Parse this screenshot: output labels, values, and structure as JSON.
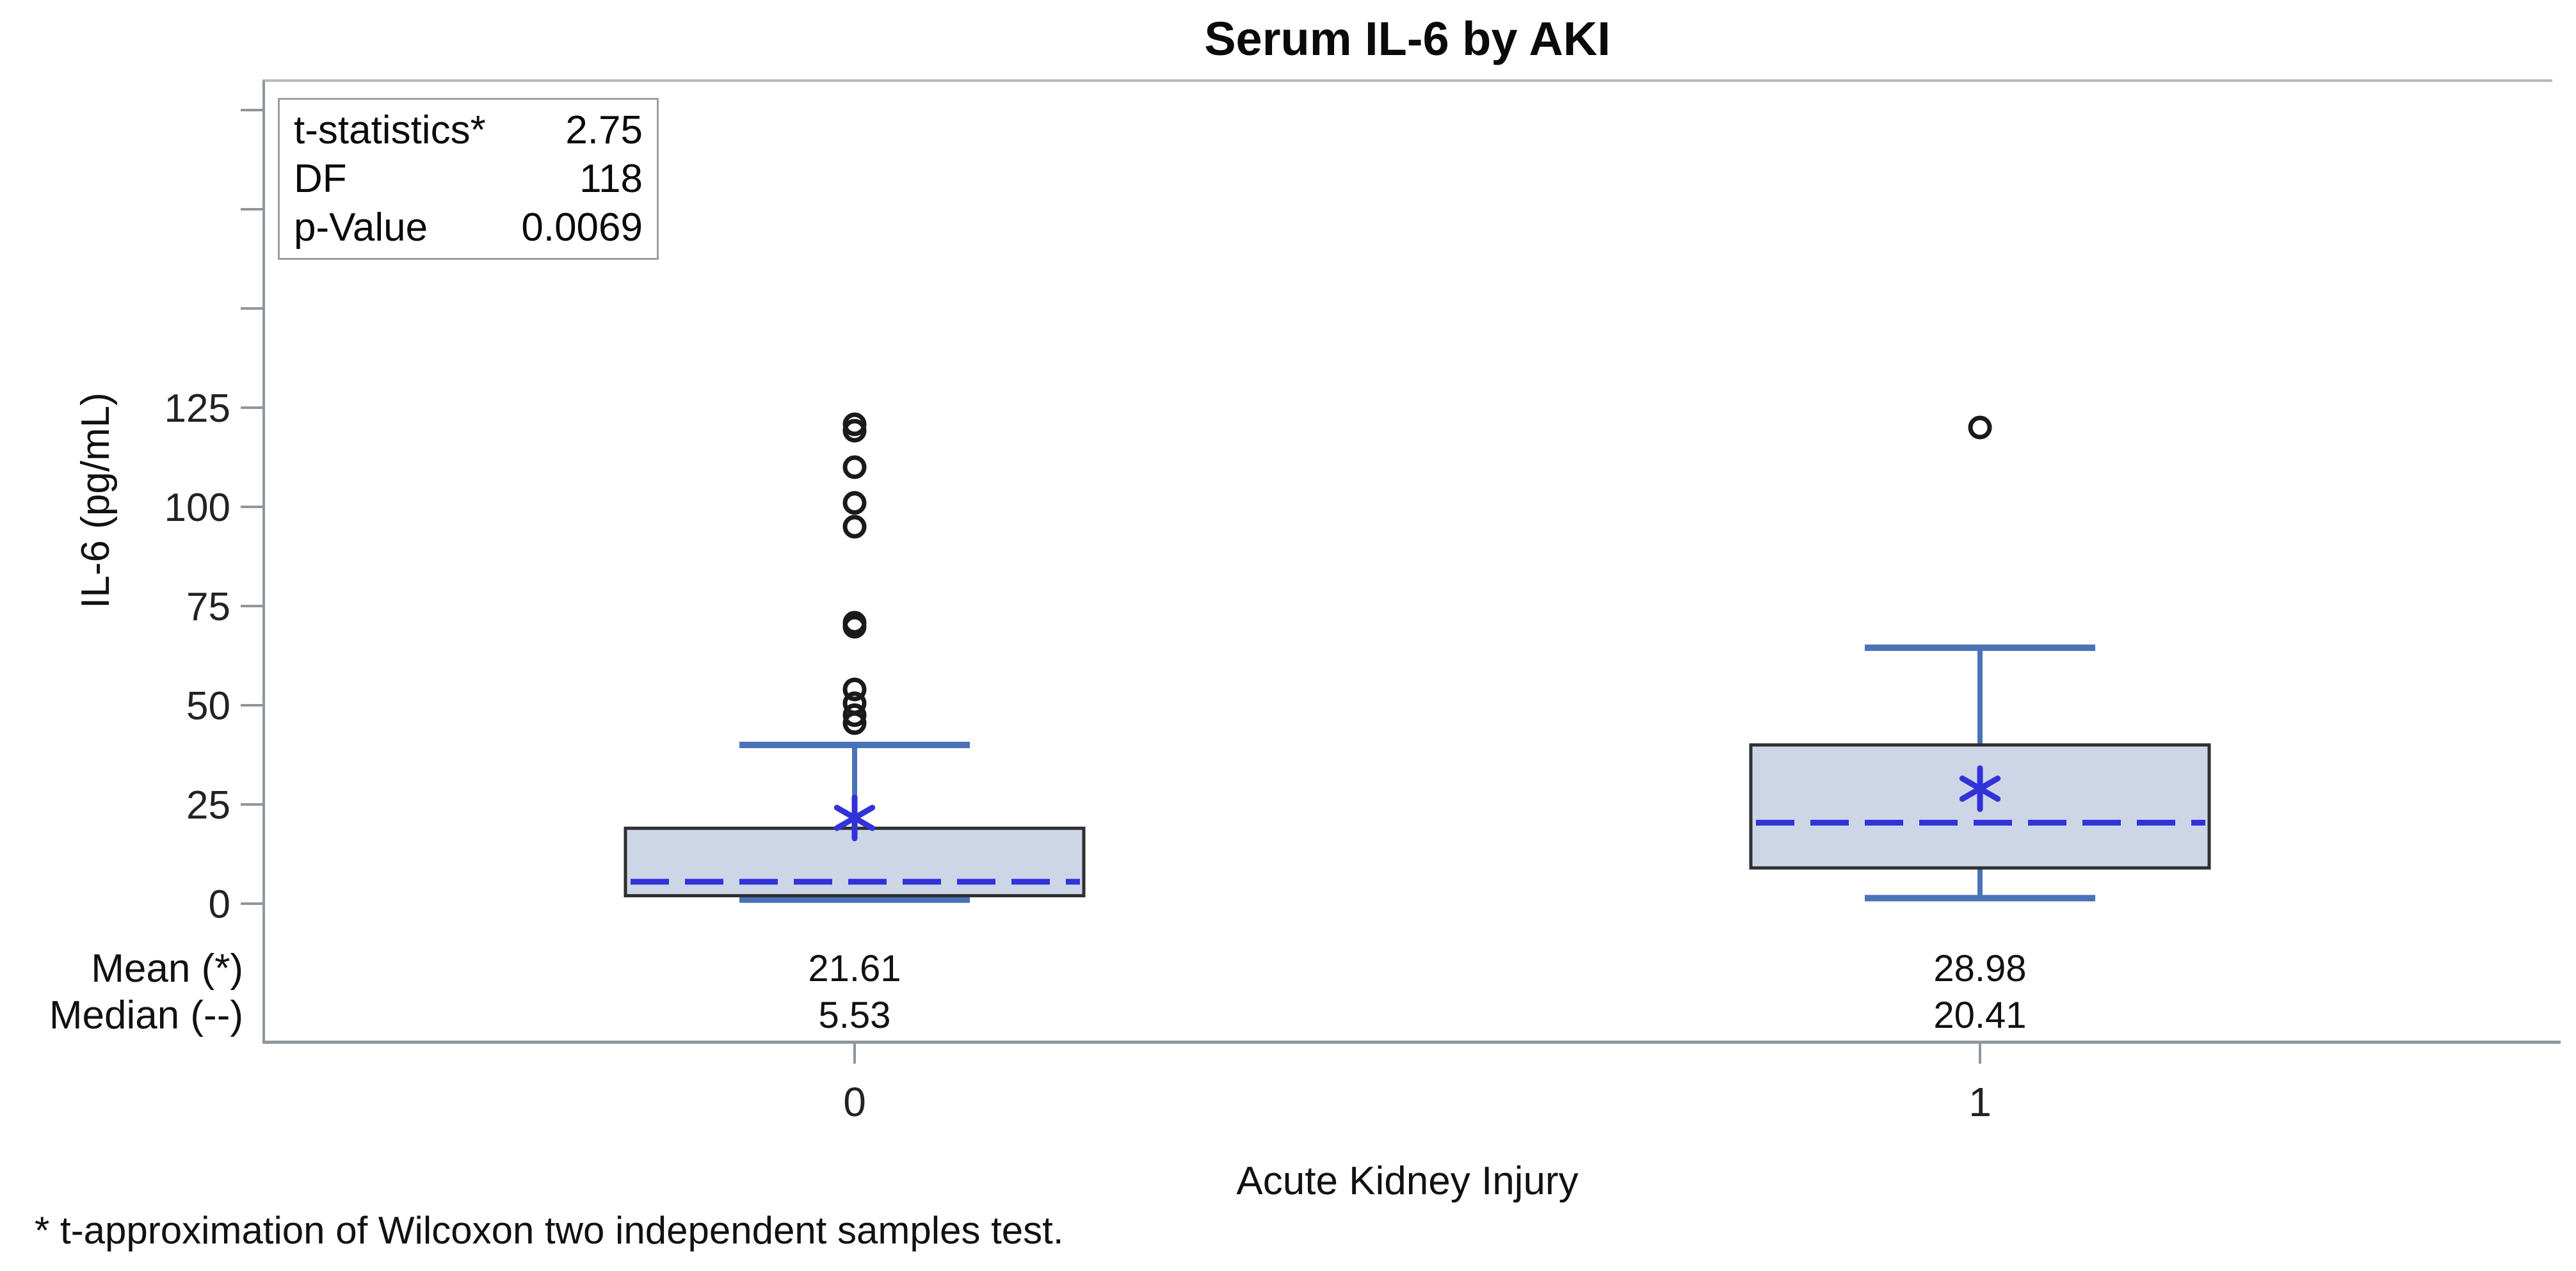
{
  "chart_data": {
    "type": "box",
    "title": "Serum IL-6 by AKI",
    "ylabel": "IL-6 (pg/mL)",
    "xlabel": "Acute Kidney Injury",
    "ylim": [
      0,
      207
    ],
    "yticks": [
      0,
      25,
      50,
      75,
      100,
      125,
      150,
      175,
      200
    ],
    "ytick_label_max": 125,
    "grid": false,
    "categories": [
      "0",
      "1"
    ],
    "series": [
      {
        "category": "0",
        "mean": 21.61,
        "median": 5.53,
        "q1": 2,
        "q3": 19,
        "whisker_low": 1,
        "whisker_high": 40,
        "outliers": [
          120.8,
          119.2,
          110,
          101,
          95,
          70.8,
          69.8,
          54,
          50.5,
          47.5,
          45.5
        ],
        "mean_label": "21.61",
        "median_label": "5.53"
      },
      {
        "category": "1",
        "mean": 28.98,
        "median": 20.41,
        "q1": 9,
        "q3": 40,
        "whisker_low": 1.4,
        "whisker_high": 64.5,
        "outliers": [
          120
        ],
        "mean_label": "28.98",
        "median_label": "20.41"
      }
    ],
    "row_labels": {
      "mean": "Mean (*)",
      "median": "Median (--)"
    },
    "inset": [
      {
        "label": "t-statistics*",
        "value": "2.75"
      },
      {
        "label": "DF",
        "value": "118"
      },
      {
        "label": "p-Value",
        "value": "0.0069"
      }
    ],
    "footnote": "* t-approximation of Wilcoxon two independent samples test.",
    "colors": {
      "box_fill": "#cdd6e7",
      "box_border": "#2f2f2f",
      "whisker": "#4a72b8",
      "median_line": "#3232d9",
      "mean_marker": "#3232d9",
      "outlier": "#1a1a1a",
      "axis_line": "#8f969c",
      "tick_label": "#222222"
    }
  }
}
